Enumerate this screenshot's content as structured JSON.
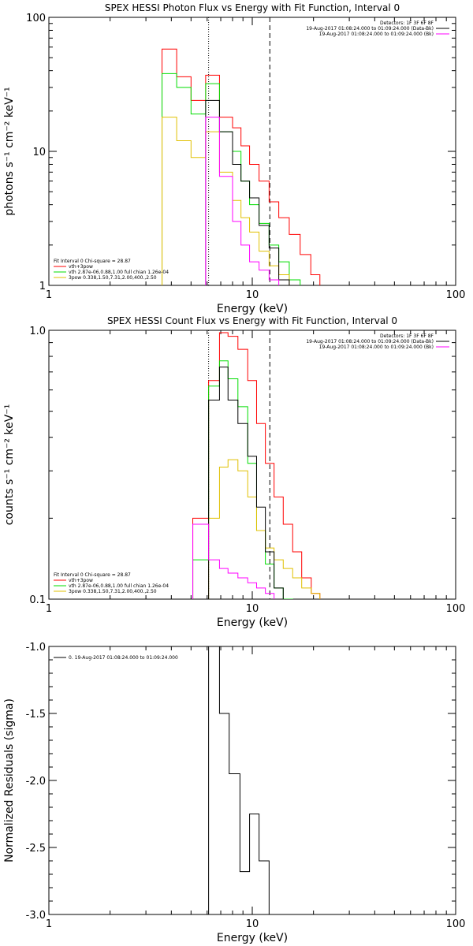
{
  "chart_data": [
    {
      "type": "line",
      "title": "SPEX HESSI Photon Flux vs Energy with Fit Function, Interval 0",
      "xlabel": "Energy (keV)",
      "ylabel": "photons s⁻¹ cm⁻² keV⁻¹",
      "xscale": "log",
      "yscale": "log",
      "xlim": [
        1,
        100
      ],
      "ylim": [
        1,
        100
      ],
      "xticks": [
        "1",
        "10",
        "100"
      ],
      "yticks": [
        "1",
        "10",
        "100"
      ],
      "legend_top_right": [
        {
          "text": "Detectors: 1F 3F 6F 8F",
          "color": ""
        },
        {
          "text": "19-Aug-2017 01:08:24.000 to 01:09:24.000 (Data-Bk)",
          "color": "#000000"
        },
        {
          "text": "19-Aug-2017 01:08:24.000 to 01:09:24.000 (Bk)",
          "color": "#ff00ff"
        }
      ],
      "legend_bottom_left": [
        {
          "text": "Fit Interval 0   Chi-square = 28.87",
          "color": ""
        },
        {
          "text": "vth+3pow",
          "color": "#ff0000"
        },
        {
          "text": "vth 2.87e-06,0.88,1.00  full chian 1.26e-04",
          "color": "#00dd00"
        },
        {
          "text": "3pow 0.338,1.50,7.31,2.00,400.,2.50",
          "color": "#e0c000"
        }
      ],
      "vlines": [
        {
          "x": 6.1,
          "style": "dotted"
        },
        {
          "x": 12.2,
          "style": "dashed"
        }
      ],
      "edges": [
        3.6,
        4.25,
        5.0,
        5.9,
        6.9,
        8.0,
        8.8,
        9.7,
        10.8,
        12.1,
        13.5,
        15.2,
        17.2,
        19.4,
        21.5
      ],
      "series": [
        {
          "color": "#ff0000",
          "values": [
            58,
            36,
            24,
            37,
            18,
            15,
            11,
            8,
            6,
            4.2,
            3.2,
            2.4,
            1.7,
            1.2
          ]
        },
        {
          "color": "#00dd00",
          "values": [
            38,
            30,
            19,
            32,
            14,
            10,
            6,
            4,
            2.9,
            2.0,
            1.5,
            1.1,
            null,
            null
          ]
        },
        {
          "color": "#e0c000",
          "values": [
            18,
            12,
            9,
            14,
            7,
            4.3,
            3.2,
            2.5,
            1.8,
            1.4,
            1.2,
            null,
            null,
            null
          ]
        },
        {
          "color": "#000000",
          "values": [
            null,
            null,
            null,
            24,
            14,
            8,
            6,
            4.5,
            2.8,
            1.9,
            1.1,
            null,
            null,
            null
          ]
        },
        {
          "color": "#ff00ff",
          "values": [
            null,
            null,
            null,
            18,
            6.5,
            3.0,
            2.0,
            1.5,
            1.3,
            1.1,
            null,
            null,
            null,
            null
          ]
        }
      ]
    },
    {
      "type": "line",
      "title": "SPEX HESSI Count Flux vs Energy with Fit Function, Interval 0",
      "xlabel": "Energy (keV)",
      "ylabel": "counts s⁻¹ cm⁻² keV⁻¹",
      "xscale": "log",
      "yscale": "log",
      "xlim": [
        1,
        100
      ],
      "ylim": [
        0.1,
        1.0
      ],
      "xticks": [
        "1",
        "10",
        "100"
      ],
      "yticks": [
        "0.1",
        "1.0"
      ],
      "legend_top_right": [
        {
          "text": "Detectors: 1F 3F 6F 8F",
          "color": ""
        },
        {
          "text": "19-Aug-2017 01:08:24.000 to 01:09:24.000 (Data-Bk)",
          "color": "#000000"
        },
        {
          "text": "19-Aug-2017 01:08:24.000 to 01:09:24.000 (Bk)",
          "color": "#ff00ff"
        }
      ],
      "legend_bottom_left": [
        {
          "text": "Fit Interval 0   Chi-square = 28.87",
          "color": ""
        },
        {
          "text": "vth+3pow",
          "color": "#ff0000"
        },
        {
          "text": "vth 2.87e-06,0.88,1.00  full chian 1.26e-04",
          "color": "#00dd00"
        },
        {
          "text": "3pow 0.338,1.50,7.31,2.00,400.,2.50",
          "color": "#e0c000"
        }
      ],
      "vlines": [
        {
          "x": 6.1,
          "style": "dotted"
        },
        {
          "x": 12.2,
          "style": "dashed"
        }
      ],
      "edges": [
        5.1,
        6.1,
        6.9,
        7.6,
        8.5,
        9.5,
        10.5,
        11.6,
        12.8,
        14.2,
        15.8,
        17.5,
        19.5,
        21.5
      ],
      "series": [
        {
          "color": "#ff0000",
          "values": [
            0.2,
            0.65,
            0.98,
            0.95,
            0.85,
            0.65,
            0.45,
            0.32,
            0.24,
            0.19,
            0.15,
            0.12,
            0.105
          ]
        },
        {
          "color": "#00dd00",
          "values": [
            0.14,
            0.62,
            0.77,
            0.66,
            0.52,
            0.32,
            0.18,
            0.135,
            0.11,
            0.1,
            null,
            null,
            null
          ]
        },
        {
          "color": "#e0c000",
          "values": [
            null,
            0.2,
            0.31,
            0.33,
            0.3,
            0.24,
            0.18,
            0.155,
            0.14,
            0.13,
            0.12,
            0.11,
            0.105
          ]
        },
        {
          "color": "#000000",
          "values": [
            null,
            0.55,
            0.73,
            0.55,
            0.45,
            0.34,
            0.22,
            0.15,
            0.11,
            null,
            null,
            null,
            null
          ]
        },
        {
          "color": "#ff00ff",
          "values": [
            0.19,
            0.14,
            0.13,
            0.125,
            0.12,
            0.115,
            0.11,
            0.105,
            null,
            null,
            null,
            null,
            null
          ]
        }
      ]
    },
    {
      "type": "line",
      "title": "",
      "xlabel": "Energy (keV)",
      "ylabel": "Normalized Residuals (sigma)",
      "xscale": "log",
      "yscale": "linear",
      "xlim": [
        1,
        100
      ],
      "ylim": [
        -3.0,
        -1.0
      ],
      "xticks": [
        "1",
        "10",
        "100"
      ],
      "yticks": [
        "-1.0",
        "-1.5",
        "-2.0",
        "-2.5",
        "-3.0"
      ],
      "legend_top_left": [
        {
          "text": "0. 19-Aug-2017 01:08:24.000 to 01:09:24.000",
          "color": "#000000"
        }
      ],
      "edges": [
        6.1,
        6.9,
        7.7,
        8.7,
        9.7,
        10.8,
        12.1
      ],
      "series": [
        {
          "color": "#000000",
          "values": [
            -0.98,
            -1.5,
            -1.95,
            -2.68,
            -2.25,
            -2.6
          ]
        }
      ]
    }
  ]
}
